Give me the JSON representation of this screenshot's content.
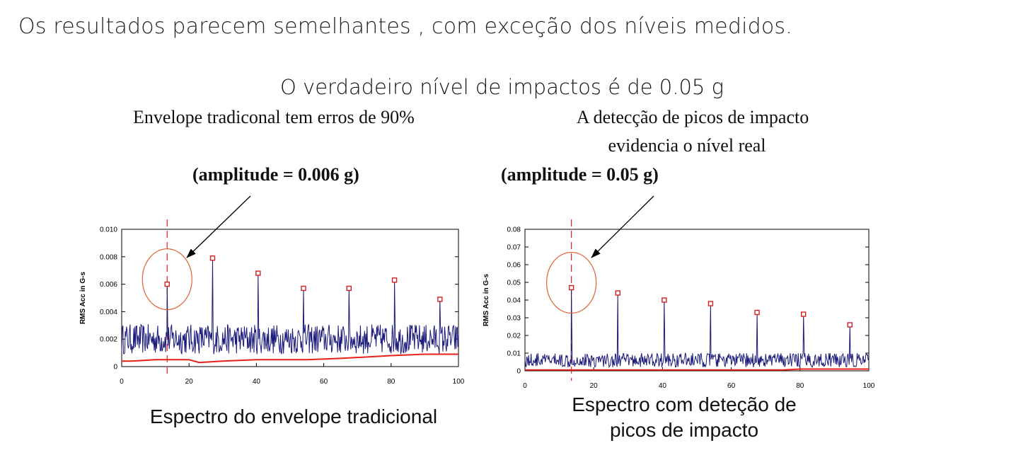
{
  "heading": "Os resultados parecem semelhantes , com exceção dos níveis medidos.",
  "subheading": "O verdadeiro nível de impactos é de 0.05 g",
  "left_note": "Envelope tradiconal tem erros de 90%",
  "right_note_line1": "A detecção de picos de impacto",
  "right_note_line2": "evidencia o nível real",
  "left_amplitude": "(amplitude = 0.006 g)",
  "right_amplitude": "(amplitude = 0.05 g)",
  "left_caption": "Espectro do envelope tradicional",
  "right_caption_line1": "Espectro com deteção de",
  "right_caption_line2": "picos de impacto",
  "colors": {
    "signal": "#1a1a7a",
    "baseline": "#e8201a",
    "marker": "#d42020",
    "circle": "#e06030"
  },
  "chart_data": [
    {
      "type": "line",
      "title": "Espectro do envelope tradicional",
      "xlabel": "",
      "ylabel": "RMS Acc in G-s",
      "xlim": [
        0,
        100
      ],
      "ylim": [
        0,
        0.01
      ],
      "x_ticks": [
        0,
        20,
        40,
        60,
        80,
        100
      ],
      "y_ticks": [
        0,
        0.002,
        0.004,
        0.006,
        0.008,
        0.01
      ],
      "y_tick_labels": [
        "0",
        "0.002",
        "0.004",
        "0.006",
        "0.008",
        "0.010"
      ],
      "noise_level": 0.002,
      "noise_amplitude": 0.0011,
      "peaks": [
        {
          "x": 13.5,
          "y": 0.006
        },
        {
          "x": 27,
          "y": 0.0079
        },
        {
          "x": 40.5,
          "y": 0.0068
        },
        {
          "x": 54,
          "y": 0.0057
        },
        {
          "x": 67.5,
          "y": 0.0057
        },
        {
          "x": 81,
          "y": 0.0063
        },
        {
          "x": 94.5,
          "y": 0.0049
        }
      ],
      "baseline": {
        "x": [
          0,
          3,
          10,
          20,
          23,
          30,
          40,
          55,
          65,
          80,
          90,
          100
        ],
        "y": [
          0.0004,
          0.0004,
          0.0005,
          0.0005,
          0.0003,
          0.0004,
          0.0005,
          0.0005,
          0.0006,
          0.0008,
          0.0009,
          0.0009
        ]
      },
      "highlight_x": 13.5,
      "grid": false
    },
    {
      "type": "line",
      "title": "Espectro com deteção de picos de impacto",
      "xlabel": "",
      "ylabel": "RMS Acc in G-s",
      "xlim": [
        0,
        100
      ],
      "ylim": [
        0,
        0.08
      ],
      "x_ticks": [
        0,
        20,
        40,
        60,
        80,
        100
      ],
      "y_ticks": [
        0,
        0.01,
        0.02,
        0.03,
        0.04,
        0.05,
        0.06,
        0.07,
        0.08
      ],
      "y_tick_labels": [
        "0",
        "0.01",
        "0.02",
        "0.03",
        "0.04",
        "0.05",
        "0.06",
        "0.07",
        "0.08"
      ],
      "noise_level": 0.006,
      "noise_amplitude": 0.004,
      "peaks": [
        {
          "x": 13.5,
          "y": 0.047
        },
        {
          "x": 27,
          "y": 0.044
        },
        {
          "x": 40.5,
          "y": 0.04
        },
        {
          "x": 54,
          "y": 0.038
        },
        {
          "x": 67.5,
          "y": 0.033
        },
        {
          "x": 81,
          "y": 0.032
        },
        {
          "x": 94.5,
          "y": 0.026
        }
      ],
      "baseline": {
        "x": [
          0,
          75,
          80,
          100
        ],
        "y": [
          0.0005,
          0.0005,
          0.001,
          0.001
        ]
      },
      "highlight_x": 13.5,
      "grid": false
    }
  ]
}
